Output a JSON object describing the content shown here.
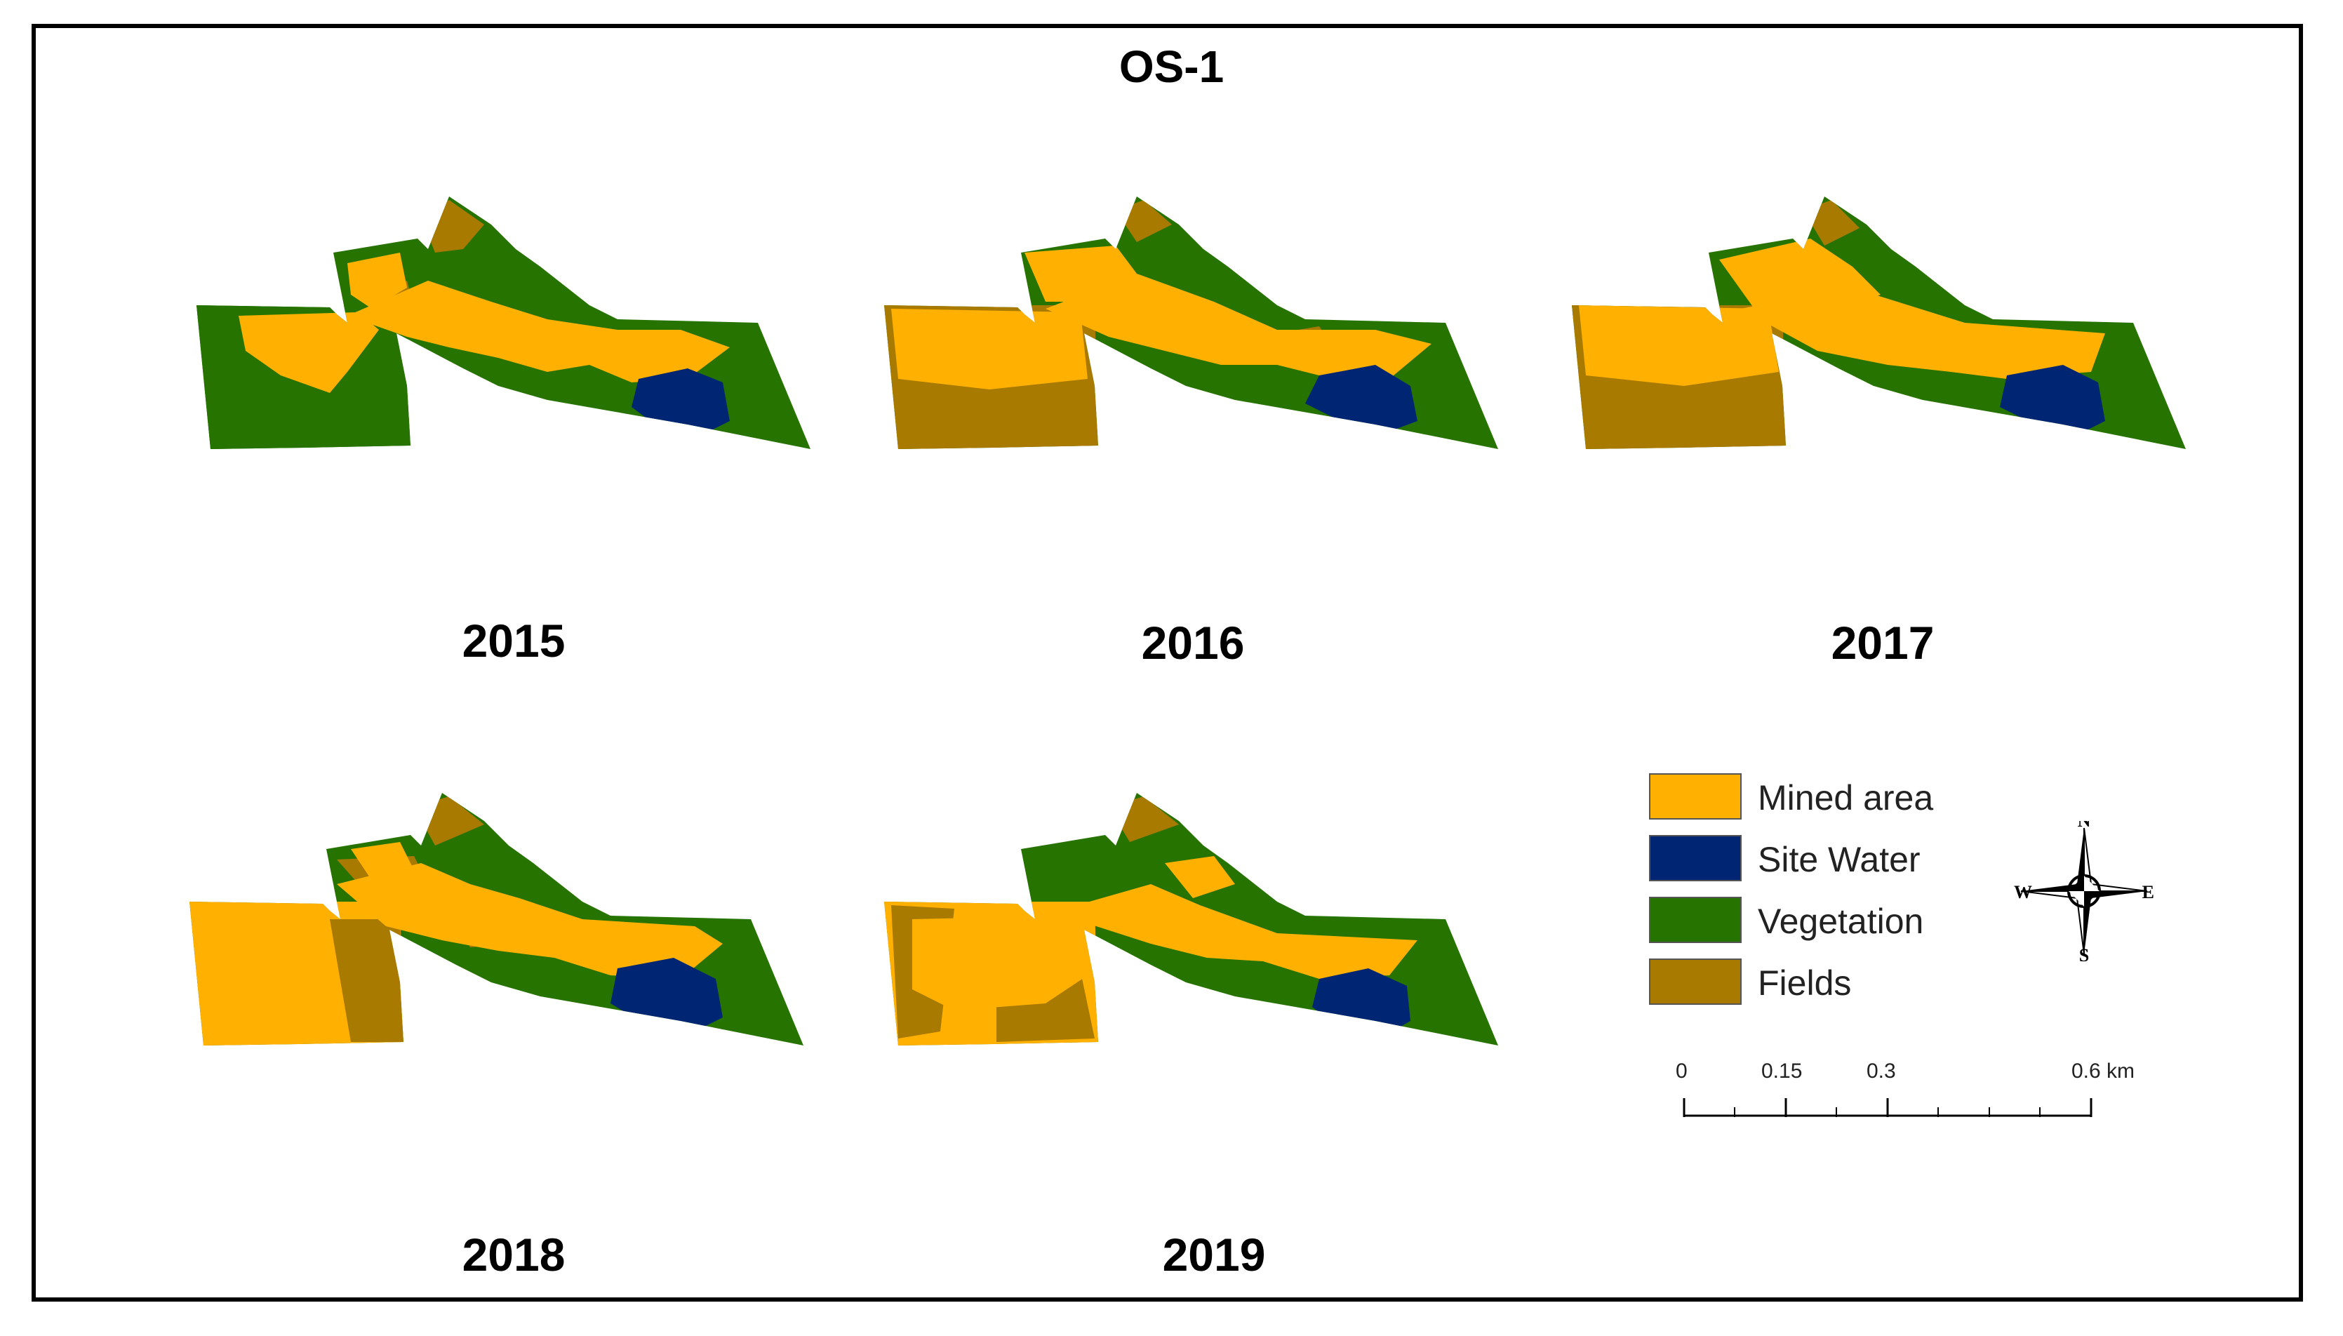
{
  "title": "OS-1",
  "colors": {
    "mined": "#FFB000",
    "water": "#002673",
    "vegetation": "#267300",
    "fields": "#A87A00"
  },
  "panels": [
    {
      "year": "2015"
    },
    {
      "year": "2016"
    },
    {
      "year": "2017"
    },
    {
      "year": "2018"
    },
    {
      "year": "2019"
    }
  ],
  "legend": [
    {
      "label": "Mined area",
      "color": "#FFB000"
    },
    {
      "label": "Site Water",
      "color": "#002673"
    },
    {
      "label": "Vegetation",
      "color": "#267300"
    },
    {
      "label": "Fields",
      "color": "#A87A00"
    }
  ],
  "compass": {
    "n": "N",
    "s": "S",
    "e": "E",
    "w": "W"
  },
  "scale": {
    "labels": [
      "0",
      "0.15",
      "0.3",
      "0.6 km"
    ],
    "values": [
      0,
      0.15,
      0.3,
      0.6
    ],
    "unit": "km"
  }
}
